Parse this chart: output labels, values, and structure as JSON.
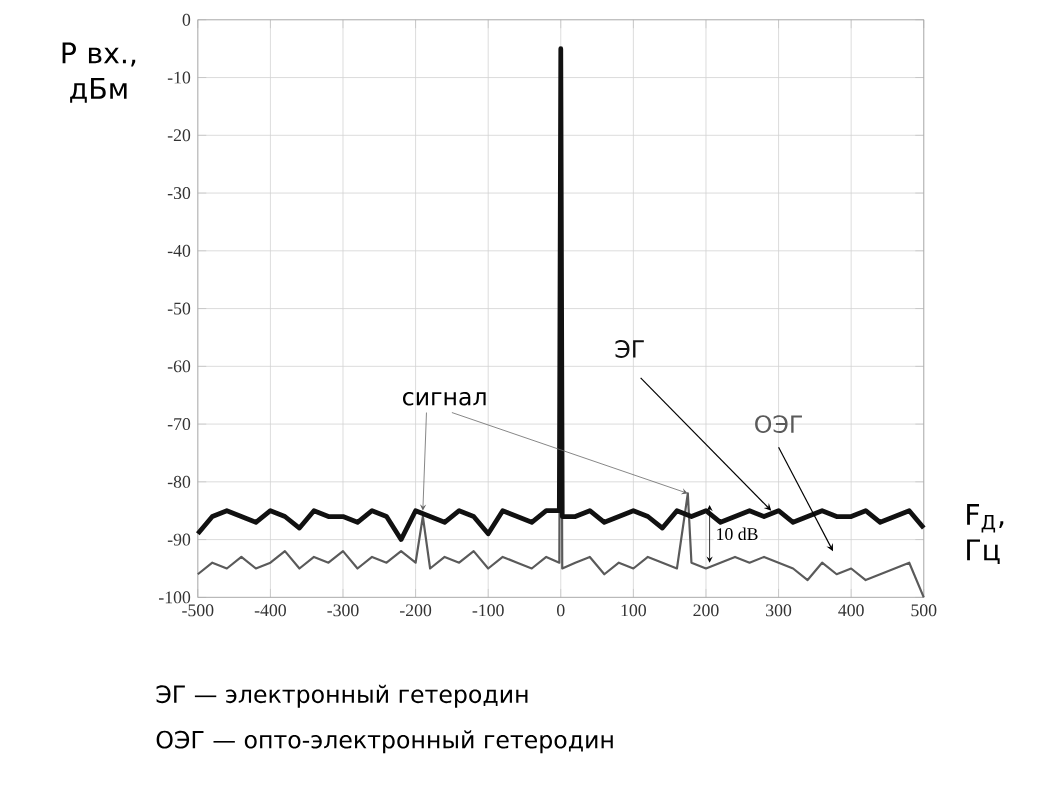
{
  "chart_data": {
    "type": "line",
    "ylabel": "P вх., дБм",
    "xlabel": "F$_{Д}$, Гц",
    "xlim": [
      -500,
      500
    ],
    "xticks": [
      -500,
      -400,
      -300,
      -200,
      -100,
      0,
      100,
      200,
      300,
      400,
      500
    ],
    "ylim": [
      -100,
      0
    ],
    "yticks": [
      -100,
      -90,
      -80,
      -70,
      -60,
      -50,
      -40,
      -30,
      -20,
      -10,
      0
    ],
    "grid": true,
    "marker": "none",
    "line_style": "solid",
    "annotations": [
      {
        "text": "сигнал",
        "x": 175,
        "y": -82
      },
      "10 dB",
      "ЭГ — электронный гетеродин",
      "ОЭГ — опто-электронный гетеродин"
    ],
    "series": [
      {
        "name": "ЭГ",
        "color": "#111111",
        "x": [
          -500,
          -480,
          -460,
          -440,
          -420,
          -400,
          -380,
          -360,
          -340,
          -320,
          -300,
          -280,
          -260,
          -240,
          -220,
          -200,
          -180,
          -160,
          -140,
          -120,
          -100,
          -80,
          -60,
          -40,
          -20,
          -2,
          0,
          2,
          20,
          40,
          60,
          80,
          100,
          120,
          140,
          160,
          180,
          200,
          220,
          240,
          260,
          280,
          300,
          320,
          340,
          360,
          380,
          400,
          420,
          440,
          460,
          480,
          500
        ],
        "values": [
          -89,
          -86,
          -85,
          -86,
          -87,
          -85,
          -86,
          -88,
          -85,
          -86,
          -86,
          -87,
          -85,
          -86,
          -90,
          -85,
          -86,
          -87,
          -85,
          -86,
          -89,
          -85,
          -86,
          -87,
          -85,
          -85,
          -5,
          -86,
          -86,
          -85,
          -87,
          -86,
          -85,
          -86,
          -88,
          -85,
          -86,
          -85,
          -87,
          -86,
          -85,
          -86,
          -85,
          -87,
          -86,
          -85,
          -86,
          -86,
          -85,
          -87,
          -86,
          -85,
          -88
        ]
      },
      {
        "name": "ОЭГ",
        "color": "#5a5a5a",
        "x": [
          -500,
          -480,
          -460,
          -440,
          -420,
          -400,
          -380,
          -360,
          -340,
          -320,
          -300,
          -280,
          -260,
          -240,
          -220,
          -200,
          -190,
          -180,
          -160,
          -140,
          -120,
          -100,
          -80,
          -60,
          -40,
          -20,
          -2,
          0,
          2,
          20,
          40,
          60,
          80,
          100,
          120,
          140,
          160,
          175,
          180,
          200,
          220,
          240,
          260,
          280,
          300,
          320,
          340,
          360,
          380,
          400,
          420,
          440,
          460,
          480,
          500
        ],
        "values": [
          -96,
          -94,
          -95,
          -93,
          -95,
          -94,
          -92,
          -95,
          -93,
          -94,
          -92,
          -95,
          -93,
          -94,
          -92,
          -94,
          -86,
          -95,
          -93,
          -94,
          -92,
          -95,
          -93,
          -94,
          -95,
          -93,
          -94,
          -8,
          -95,
          -94,
          -93,
          -96,
          -94,
          -95,
          -93,
          -94,
          -95,
          -82,
          -94,
          -95,
          -94,
          -93,
          -94,
          -93,
          -94,
          -95,
          -97,
          -94,
          -96,
          -95,
          -97,
          -96,
          -95,
          -94,
          -100
        ]
      }
    ]
  }
}
